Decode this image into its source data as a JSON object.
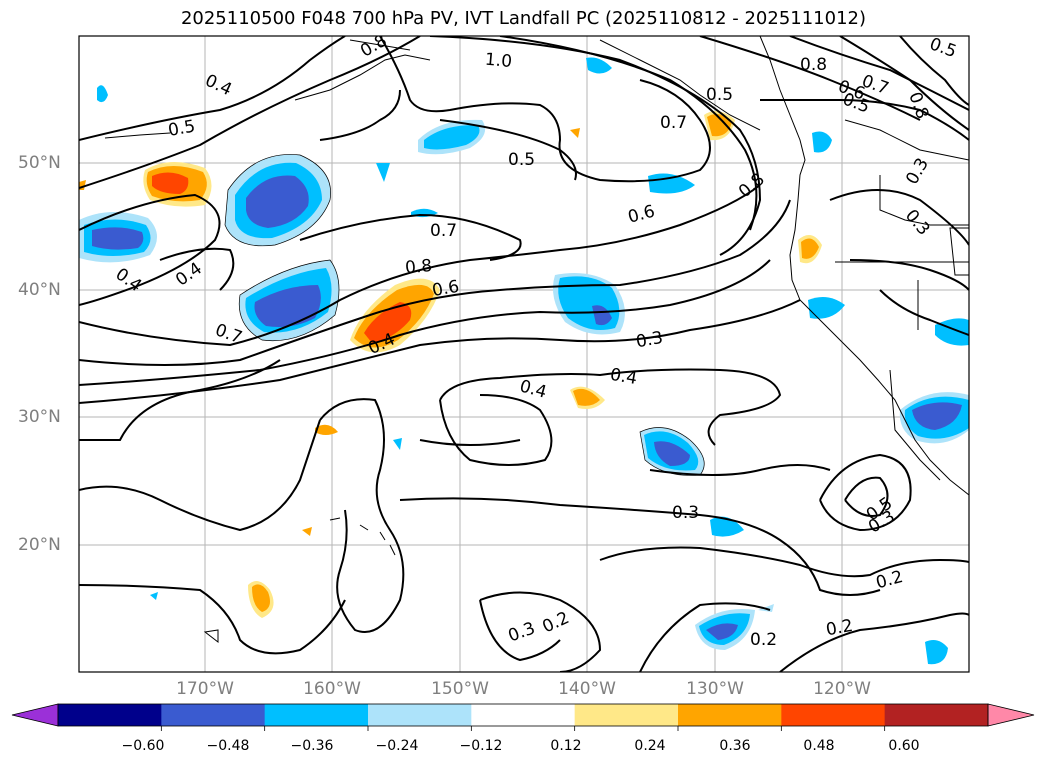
{
  "title": "2025110500 F048 700 hPa PV, IVT Landfall PC (2025110812 - 2025111012)",
  "lat_labels": [
    "50°N",
    "40°N",
    "30°N",
    "20°N"
  ],
  "lon_labels": [
    "170°W",
    "160°W",
    "150°W",
    "140°W",
    "130°W",
    "120°W"
  ],
  "contour_labels": [
    "0.4",
    "0.5",
    "1.0",
    "0.8",
    "0.7",
    "0.6",
    "0.5",
    "0.8",
    "0.5",
    "0.6",
    "0.7",
    "0.4",
    "0.7",
    "0.4",
    "0.8",
    "0.6",
    "0.4",
    "0.3",
    "0.4",
    "0.4",
    "0.3",
    "0.3",
    "0.2",
    "0.2",
    "0.3",
    "0.2",
    "0.5",
    "0.3",
    "0.2",
    "0.5",
    "0.7",
    "0.3",
    "0.8",
    "0.8",
    "0.5"
  ],
  "colorbar": {
    "ticks": [
      "−0.60",
      "−0.48",
      "−0.36",
      "−0.24",
      "−0.12",
      "0.12",
      "0.24",
      "0.36",
      "0.48",
      "0.60"
    ],
    "colors": [
      "#9b30d8",
      "#00008b",
      "#3a5bd0",
      "#00bfff",
      "#ade3fa",
      "#ffffff",
      "#ffe888",
      "#ffa500",
      "#ff4500",
      "#b22222",
      "#ff88a8"
    ]
  }
}
